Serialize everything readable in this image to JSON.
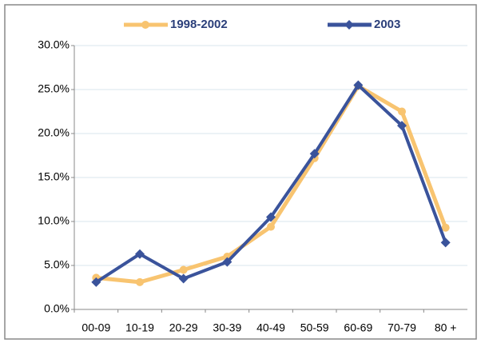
{
  "chart_data": {
    "type": "line",
    "categories": [
      "00-09",
      "10-19",
      "20-29",
      "30-39",
      "40-49",
      "50-59",
      "60-69",
      "70-79",
      "80 +"
    ],
    "series": [
      {
        "name": "1998-2002",
        "color": "#f8c470",
        "values": [
          3.6,
          3.1,
          4.5,
          6.0,
          9.4,
          17.2,
          25.4,
          22.5,
          9.3
        ]
      },
      {
        "name": "2003",
        "color": "#3a539b",
        "values": [
          3.1,
          6.3,
          3.5,
          5.4,
          10.5,
          17.7,
          25.5,
          20.9,
          7.6
        ]
      }
    ],
    "ylim": [
      0,
      30
    ],
    "yticks": [
      {
        "value": 0,
        "label": "0.0%"
      },
      {
        "value": 5,
        "label": "5.0%"
      },
      {
        "value": 10,
        "label": "10.0%"
      },
      {
        "value": 15,
        "label": "15.0%"
      },
      {
        "value": 20,
        "label": "20.0%"
      },
      {
        "value": 25,
        "label": "25.0%"
      },
      {
        "value": 30,
        "label": "30.0%"
      }
    ],
    "grid": true
  }
}
